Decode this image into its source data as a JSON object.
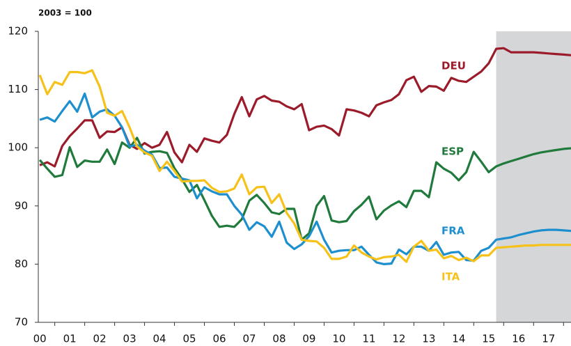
{
  "chart_data": {
    "type": "line",
    "y_label": "2003 = 100",
    "x": [
      0,
      0.25,
      0.5,
      0.75,
      1,
      1.25,
      1.5,
      1.75,
      2,
      2.25,
      2.5,
      2.75,
      3,
      3.25,
      3.5,
      3.75,
      4,
      4.25,
      4.5,
      4.75,
      5,
      5.25,
      5.5,
      5.75,
      6,
      6.25,
      6.5,
      6.75,
      7,
      7.25,
      7.5,
      7.75,
      8,
      8.25,
      8.5,
      8.75,
      9,
      9.25,
      9.5,
      9.75,
      10,
      10.25,
      10.5,
      10.75,
      11,
      11.25,
      11.5,
      11.75,
      12,
      12.25,
      12.5,
      12.75,
      13,
      13.25,
      13.5,
      13.75,
      14,
      14.25,
      14.5,
      14.75,
      15,
      15.25,
      15.5,
      15.75,
      16,
      16.25,
      16.5,
      16.75,
      17,
      17.25,
      17.5,
      17.75
    ],
    "series": [
      {
        "name": "DEU",
        "color": "#9b1b2a",
        "values": [
          97,
          97.5,
          96.8,
          100.3,
          102,
          103.3,
          104.7,
          104.7,
          101.7,
          102.8,
          102.7,
          103.5,
          100.5,
          99.8,
          100.8,
          100,
          100.5,
          102.7,
          99.2,
          97.5,
          100.5,
          99.3,
          101.6,
          101.2,
          100.9,
          102.2,
          105.8,
          108.7,
          105.4,
          108.3,
          108.9,
          108.1,
          107.9,
          107.1,
          106.6,
          107.5,
          103,
          103.6,
          103.8,
          103.2,
          102.1,
          106.6,
          106.4,
          106,
          105.4,
          107.3,
          107.8,
          108.2,
          109.2,
          111.6,
          112.2,
          109.6,
          110.6,
          110.5,
          109.8,
          112,
          111.5,
          111.3,
          112.2,
          113.1,
          114.5,
          117,
          117.1,
          116.4,
          116.4,
          116.4,
          116.4,
          116.3,
          116.2,
          116.1,
          116,
          115.9
        ]
      },
      {
        "name": "ESP",
        "color": "#1f7a3b",
        "values": [
          97.9,
          96.4,
          95,
          95.3,
          100.1,
          96.7,
          97.8,
          97.6,
          97.6,
          99.7,
          97.2,
          100.9,
          100,
          101.7,
          99,
          99.3,
          99.4,
          99.1,
          96.5,
          94.6,
          92.4,
          93.6,
          91,
          88.3,
          86.4,
          86.6,
          86.4,
          87.7,
          90.9,
          91.9,
          90.5,
          88.9,
          88.6,
          89.5,
          89.5,
          84.2,
          85.3,
          90,
          91.7,
          87.5,
          87.2,
          87.4,
          89.1,
          90.2,
          91.6,
          87.7,
          89.2,
          90.1,
          90.8,
          89.8,
          92.6,
          92.6,
          91.5,
          97.5,
          96.4,
          95.7,
          94.4,
          95.8,
          99.3,
          97.6,
          95.8,
          96.8,
          97.3,
          97.7,
          98.1,
          98.5,
          98.9,
          99.2,
          99.4,
          99.6,
          99.8,
          99.9
        ]
      },
      {
        "name": "FRA",
        "color": "#1d8fcf",
        "values": [
          104.8,
          105.2,
          104.5,
          106.3,
          108,
          106.2,
          109.3,
          105.2,
          106.2,
          106.6,
          105.5,
          103.5,
          100.2,
          100.5,
          99.5,
          98.8,
          96.5,
          96.6,
          95,
          94.7,
          94.4,
          91.3,
          93.2,
          92.5,
          92,
          92,
          90,
          88.5,
          85.9,
          87.2,
          86.5,
          84.7,
          87.3,
          83.7,
          82.6,
          83.4,
          84.8,
          87.3,
          84.2,
          82,
          82.3,
          82.4,
          82.4,
          83,
          81.6,
          80.3,
          80,
          80.1,
          82.5,
          81.7,
          83,
          83,
          82.3,
          83.8,
          81.6,
          82,
          82.1,
          80.7,
          80.6,
          82.3,
          82.8,
          84.2,
          84.4,
          84.6,
          85,
          85.3,
          85.6,
          85.8,
          85.9,
          85.9,
          85.8,
          85.7
        ]
      },
      {
        "name": "ITA",
        "color": "#f6c119",
        "values": [
          112.5,
          109.2,
          111.3,
          110.8,
          113,
          113,
          112.8,
          113.3,
          110.5,
          106,
          105.5,
          106.3,
          103.5,
          100.2,
          99.2,
          98.6,
          96,
          97.6,
          96,
          94.2,
          94.3,
          94.3,
          94.4,
          93.1,
          92.4,
          92.5,
          93,
          95.4,
          92,
          93.2,
          93.3,
          90.5,
          92,
          88.8,
          87,
          84.2,
          84,
          83.9,
          82.8,
          80.9,
          80.9,
          81.3,
          83.2,
          82,
          81.3,
          80.8,
          81.2,
          81.3,
          81.6,
          80.4,
          83,
          84,
          82.3,
          82.5,
          81,
          81.4,
          80.7,
          81.1,
          80.5,
          81.5,
          81.5,
          82.8,
          82.9,
          83,
          83.1,
          83.2,
          83.2,
          83.3,
          83.3,
          83.3,
          83.3,
          83.3
        ]
      }
    ],
    "xlim": [
      -0.05,
      17.75
    ],
    "xticks": [
      {
        "value": 0,
        "label": "00"
      },
      {
        "value": 1,
        "label": "01"
      },
      {
        "value": 2,
        "label": "02"
      },
      {
        "value": 3,
        "label": "03"
      },
      {
        "value": 4,
        "label": "04"
      },
      {
        "value": 5,
        "label": "05"
      },
      {
        "value": 6,
        "label": "06"
      },
      {
        "value": 7,
        "label": "07"
      },
      {
        "value": 8,
        "label": "08"
      },
      {
        "value": 9,
        "label": "09"
      },
      10,
      11,
      12,
      13,
      14,
      15,
      16,
      17
    ],
    "ylim": [
      70,
      120
    ],
    "yticks": [
      70,
      80,
      90,
      100,
      110,
      120
    ],
    "shaded_region": [
      15.25,
      17.75
    ],
    "shade_color": "#d5d6d8"
  }
}
